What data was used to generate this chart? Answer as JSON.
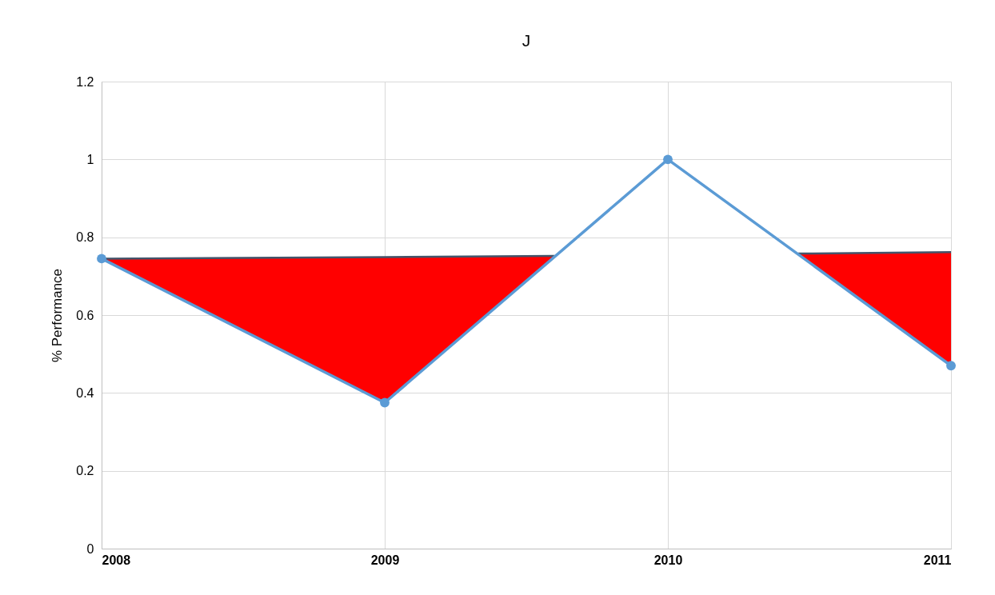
{
  "chart_data": {
    "type": "line",
    "title": "J",
    "ylabel": "% Performance",
    "x": [
      2008,
      2009,
      2010,
      2011
    ],
    "series": [
      {
        "type": "area",
        "color": "#ff0000",
        "x": [
          2008,
          2009,
          2009.6
        ],
        "values": [
          0.745,
          0.749,
          0.752
        ]
      },
      {
        "type": "area",
        "color": "#ff0000",
        "x": [
          2010.46,
          2011
        ],
        "values": [
          0.758,
          0.762
        ]
      },
      {
        "type": "line",
        "color": "#5b9bd5",
        "values": [
          0.745,
          0.375,
          1.0,
          0.47
        ],
        "marker": "circle"
      }
    ],
    "xlim": [
      2008,
      2011
    ],
    "xticks": [
      2008,
      2009,
      2010,
      2011
    ],
    "ylim": [
      0,
      1.2
    ],
    "yticks": [
      0,
      0.2,
      0.4,
      0.6,
      0.8,
      1,
      1.2
    ],
    "grid": true
  }
}
